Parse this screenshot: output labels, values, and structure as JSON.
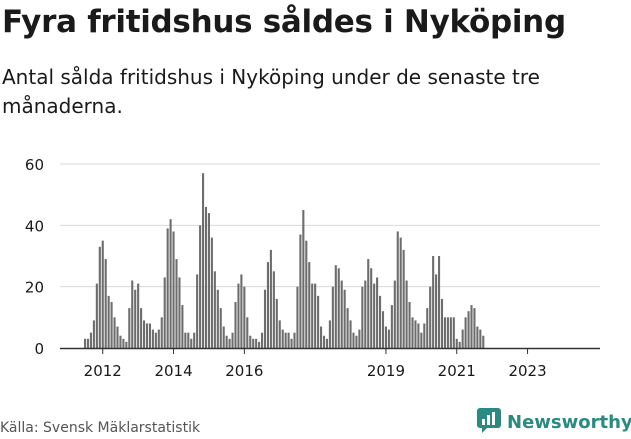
{
  "title": "Fyra fritidshus såldes i Nyköping",
  "subtitle": "Antal sålda fritidshus i Nyköping under de senaste tre månaderna.",
  "source": "Källa: Svensk Mäklarstatistik",
  "logo": {
    "text": "Newsworthy",
    "icon": "chart-bubble-icon"
  },
  "colors": {
    "bar": "#6d6d6d",
    "highlight": "#1fa89a",
    "grid": "#d9d9d9",
    "text": "#1a1a1a",
    "brand": "#2a8a80"
  },
  "chart_data": {
    "type": "bar",
    "ylim": [
      0,
      60
    ],
    "yticks": [
      0,
      20,
      40,
      60
    ],
    "xlabels": [
      "2012",
      "2014",
      "2016",
      "2019",
      "2021",
      "2023"
    ],
    "xlabel_index": [
      6,
      30,
      54,
      102,
      126,
      150
    ],
    "grid": true,
    "highlight_index": 164,
    "annotation": "4",
    "values": [
      3,
      3,
      5,
      9,
      21,
      33,
      35,
      29,
      17,
      15,
      10,
      7,
      4,
      3,
      2,
      13,
      22,
      19,
      21,
      13,
      9,
      8,
      8,
      6,
      5,
      6,
      10,
      23,
      39,
      42,
      38,
      29,
      23,
      14,
      5,
      5,
      3,
      5,
      24,
      40,
      57,
      46,
      44,
      36,
      25,
      19,
      13,
      7,
      4,
      3,
      5,
      15,
      21,
      24,
      20,
      10,
      4,
      3,
      3,
      2,
      5,
      19,
      28,
      32,
      25,
      16,
      9,
      6,
      5,
      5,
      3,
      5,
      20,
      37,
      45,
      35,
      28,
      21,
      21,
      17,
      7,
      4,
      3,
      9,
      20,
      27,
      26,
      22,
      19,
      13,
      9,
      5,
      4,
      6,
      20,
      22,
      29,
      26,
      21,
      23,
      17,
      12,
      7,
      6,
      14,
      22,
      38,
      36,
      32,
      22,
      15,
      10,
      9,
      8,
      5,
      8,
      13,
      20,
      30,
      24,
      30,
      16,
      10,
      10,
      10,
      10,
      3,
      2,
      6,
      10,
      12,
      14,
      13,
      7,
      6,
      4
    ]
  }
}
